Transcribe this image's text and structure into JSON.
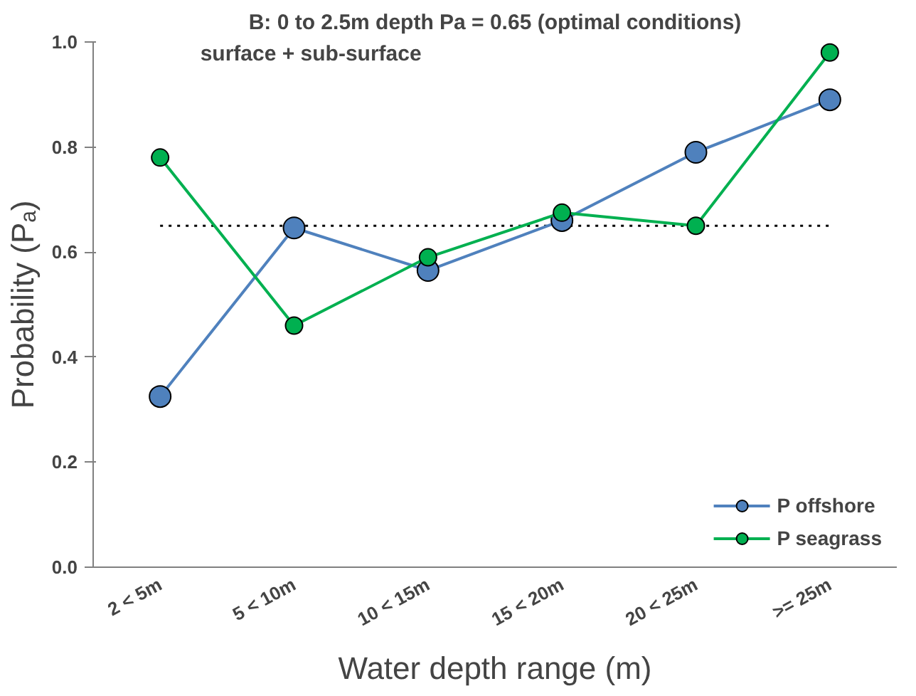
{
  "chart_data": {
    "type": "line",
    "title": "B: 0 to 2.5m depth Pa = 0.65 (optimal conditions)",
    "annotations": [
      "surface + sub-surface"
    ],
    "xlabel": "Water depth range (m)",
    "ylabel": "Probability (Pₐ)",
    "categories": [
      "2 < 5m",
      "5 < 10m",
      "10 < 15m",
      "15 < 20m",
      "20 < 25m",
      ">= 25m"
    ],
    "series": [
      {
        "name": "P offshore",
        "color": "#4f81bd",
        "values": [
          0.325,
          0.646,
          0.565,
          0.66,
          0.79,
          0.89
        ]
      },
      {
        "name": "P seagrass",
        "color": "#00b050",
        "values": [
          0.78,
          0.46,
          0.59,
          0.675,
          0.65,
          0.98
        ]
      }
    ],
    "ylim": [
      0,
      1
    ],
    "yticks": [
      {
        "value": 0,
        "label": "0.0"
      },
      {
        "value": 0.2,
        "label": "0.2"
      },
      {
        "value": 0.4,
        "label": "0.4"
      },
      {
        "value": 0.6,
        "label": "0.6"
      },
      {
        "value": 0.8,
        "label": "0.8"
      },
      {
        "value": 1,
        "label": "1.0"
      }
    ],
    "ref_lines": [
      {
        "axis": "y",
        "value": 0.65,
        "label": null,
        "color": "#000000",
        "line_style": "dotted"
      }
    ],
    "marker": "circle",
    "line_style": "solid",
    "legend": "bottom right",
    "grid": false
  }
}
